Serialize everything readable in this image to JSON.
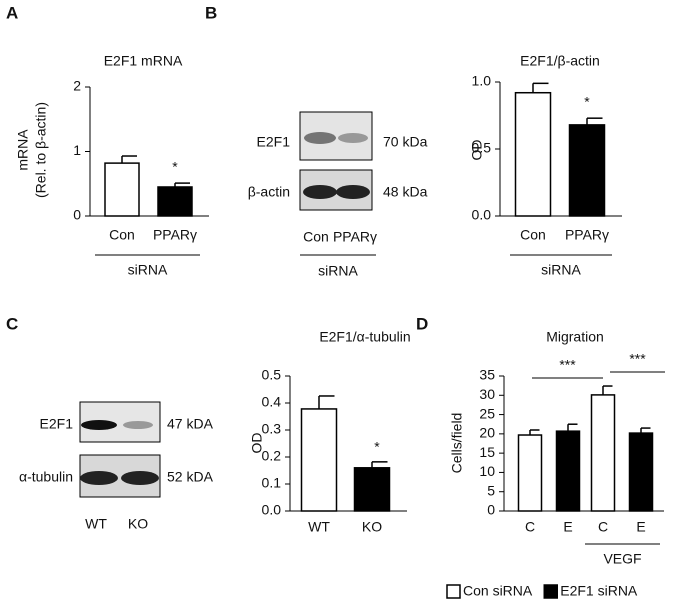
{
  "panel_labels": [
    "A",
    "B",
    "C",
    "D"
  ],
  "chart_data": [
    {
      "type": "bar",
      "title": "E2F1 mRNA",
      "ylabel": [
        "mRNA",
        "(Rel. to β-actin)"
      ],
      "categories": [
        "Con",
        "PPARγ"
      ],
      "values": [
        0.82,
        0.45
      ],
      "errors": [
        0.11,
        0.06
      ],
      "colors": [
        "#ffffff",
        "#000000"
      ],
      "ylim": [
        0,
        2
      ],
      "yticks": [
        0,
        1,
        2
      ],
      "group": "siRNA",
      "annotations": [
        "*"
      ]
    },
    {
      "type": "bar",
      "title": "E2F1/β-actin",
      "ylabel": "OD",
      "categories": [
        "Con",
        "PPARγ"
      ],
      "values": [
        0.92,
        0.68
      ],
      "errors": [
        0.07,
        0.05
      ],
      "colors": [
        "#ffffff",
        "#000000"
      ],
      "ylim": [
        0,
        1
      ],
      "yticks": [
        {
          "value": 0,
          "label": "0.0"
        },
        0.5,
        {
          "value": 1,
          "label": "1.0"
        }
      ],
      "group": "siRNA",
      "annotations": [
        "*"
      ]
    },
    {
      "type": "bar",
      "title": "E2F1/α-tubulin",
      "ylabel": "OD",
      "categories": [
        "WT",
        "KO"
      ],
      "values": [
        0.378,
        0.16
      ],
      "errors": [
        0.048,
        0.022
      ],
      "colors": [
        "#ffffff",
        "#000000"
      ],
      "ylim": [
        0,
        0.5
      ],
      "yticks": [
        {
          "value": 0,
          "label": "0.0"
        },
        0.1,
        0.2,
        0.3,
        0.4,
        0.5
      ],
      "annotations": [
        "*"
      ]
    },
    {
      "type": "bar",
      "title": "Migration",
      "ylabel": "Cells/field",
      "categories": [
        "C",
        "E",
        "C",
        "E"
      ],
      "series": [
        {
          "name": "Con siRNA",
          "color": "#ffffff",
          "values": [
            19.7,
            null,
            30.1,
            null
          ],
          "errors": [
            1.3,
            null,
            2.3,
            null
          ]
        },
        {
          "name": "E2F1 siRNA",
          "color": "#000000",
          "values": [
            null,
            20.7,
            null,
            20.2
          ],
          "errors": [
            null,
            1.8,
            null,
            1.3
          ]
        }
      ],
      "ylim": [
        0,
        35
      ],
      "yticks": [
        0,
        5,
        10,
        15,
        20,
        25,
        30,
        35
      ],
      "group": "VEGF",
      "annotations": [
        "***",
        "***"
      ]
    }
  ],
  "blots": [
    {
      "labels": [
        "E2F1",
        "β-actin"
      ],
      "sizes": [
        "70 kDa",
        "48 kDa"
      ],
      "lanes": [
        "Con",
        "PPARγ"
      ],
      "group": "siRNA"
    },
    {
      "labels": [
        "E2F1",
        "α-tubulin"
      ],
      "sizes": [
        "47 kDA",
        "52 kDA"
      ],
      "lanes": [
        "WT",
        "KO"
      ]
    }
  ]
}
